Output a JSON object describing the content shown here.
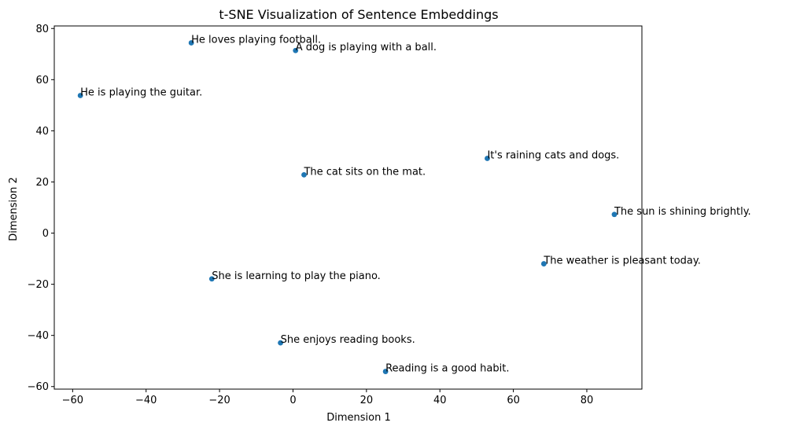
{
  "chart_data": {
    "type": "scatter",
    "title": "t-SNE Visualization of Sentence Embeddings",
    "xlabel": "Dimension 1",
    "ylabel": "Dimension 2",
    "xlim": [
      -65,
      95
    ],
    "ylim": [
      -61,
      81
    ],
    "xticks": [
      -60,
      -40,
      -20,
      0,
      20,
      40,
      60,
      80
    ],
    "yticks": [
      -60,
      -40,
      -20,
      0,
      20,
      40,
      60,
      80
    ],
    "grid": false,
    "legend": "none",
    "marker_color": "#1f77b4",
    "points": [
      {
        "x": -27.7,
        "y": 74.4,
        "label": "He loves playing football."
      },
      {
        "x": 0.7,
        "y": 71.4,
        "label": "A dog is playing with a ball."
      },
      {
        "x": -57.9,
        "y": 53.8,
        "label": "He is playing the guitar."
      },
      {
        "x": 52.9,
        "y": 29.2,
        "label": "It's raining cats and dogs."
      },
      {
        "x": 3.0,
        "y": 22.8,
        "label": "The cat sits on the mat."
      },
      {
        "x": 87.5,
        "y": 7.3,
        "label": "The sun is shining brightly."
      },
      {
        "x": 68.3,
        "y": -12.0,
        "label": "The weather is pleasant today."
      },
      {
        "x": -22.1,
        "y": -17.9,
        "label": "She is learning to play the piano."
      },
      {
        "x": -3.4,
        "y": -42.9,
        "label": "She enjoys reading books."
      },
      {
        "x": 25.2,
        "y": -54.1,
        "label": "Reading is a good habit."
      }
    ]
  }
}
